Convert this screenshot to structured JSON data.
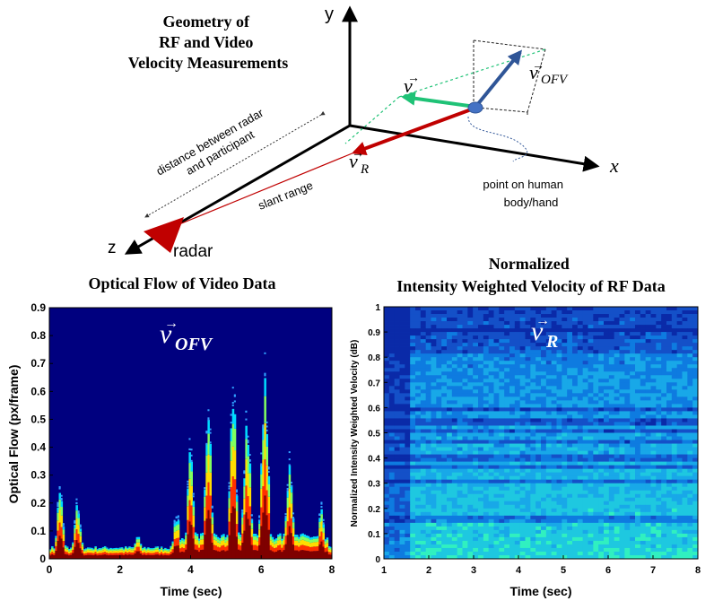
{
  "diagram": {
    "title_lines": [
      "Geometry of",
      "RF and Video",
      "Velocity Measurements"
    ],
    "axes": {
      "x": "x",
      "y": "y",
      "z": "z"
    },
    "vectors": {
      "v_base": "v",
      "v_OFV_base": "v",
      "v_OFV_sub": "OFV",
      "v_R_base": "v",
      "v_R_sub": "R",
      "arrow_mark": "→"
    },
    "labels": {
      "distance_line1": "distance between radar",
      "distance_line2": "and participant",
      "slant_range": "slant range",
      "radar": "radar",
      "point_line1": "point on human",
      "point_line2": "body/hand"
    },
    "colors": {
      "v_green": "#1fc276",
      "v_ofv_blue": "#2f5597",
      "v_r_red": "#c00000",
      "radar_red": "#c00000",
      "point_blue": "#4472c4"
    }
  },
  "chart_data": [
    {
      "type": "heatmap",
      "title": "Optical Flow of Video Data",
      "xlabel": "Time (sec)",
      "ylabel": "Optical Flow (px/frame)",
      "xlim": [
        0,
        8
      ],
      "ylim": [
        0,
        0.9
      ],
      "xticks": [
        "0",
        "2",
        "4",
        "6",
        "8"
      ],
      "yticks": [
        "0",
        "0.1",
        "0.2",
        "0.3",
        "0.4",
        "0.5",
        "0.6",
        "0.7",
        "0.8",
        "0.9"
      ],
      "overlay_base": "v",
      "overlay_sub": "OFV",
      "activity_peaks": [
        {
          "t": 0.3,
          "flow": 0.22
        },
        {
          "t": 0.8,
          "flow": 0.18
        },
        {
          "t": 2.5,
          "flow": 0.08
        },
        {
          "t": 3.6,
          "flow": 0.15
        },
        {
          "t": 4.0,
          "flow": 0.38
        },
        {
          "t": 4.5,
          "flow": 0.47
        },
        {
          "t": 5.2,
          "flow": 0.55
        },
        {
          "t": 5.6,
          "flow": 0.5
        },
        {
          "t": 6.1,
          "flow": 0.63
        },
        {
          "t": 6.8,
          "flow": 0.33
        },
        {
          "t": 7.7,
          "flow": 0.16
        }
      ],
      "colors": {
        "background": "#00007f",
        "low": "#7f0000",
        "mid": "#ffdc00",
        "high": "#00dcff"
      }
    },
    {
      "type": "heatmap",
      "title_line1": "Normalized",
      "title_line2": "Intensity Weighted Velocity of RF Data",
      "xlabel": "Time (sec)",
      "ylabel": "Normalized Intensity Weighted Velocity (dB)",
      "xlim": [
        1,
        8
      ],
      "ylim": [
        0,
        1
      ],
      "xticks": [
        "1",
        "2",
        "3",
        "4",
        "5",
        "6",
        "7",
        "8"
      ],
      "yticks": [
        "0",
        "0.1",
        "0.2",
        "0.3",
        "0.4",
        "0.5",
        "0.6",
        "0.7",
        "0.8",
        "0.9",
        "1"
      ],
      "overlay_base": "v",
      "overlay_sub": "R",
      "colors": {
        "dark": "#0a2aa8",
        "mid": "#0e7be0",
        "light": "#1ec8e0",
        "cyan": "#30f0c0"
      }
    }
  ]
}
